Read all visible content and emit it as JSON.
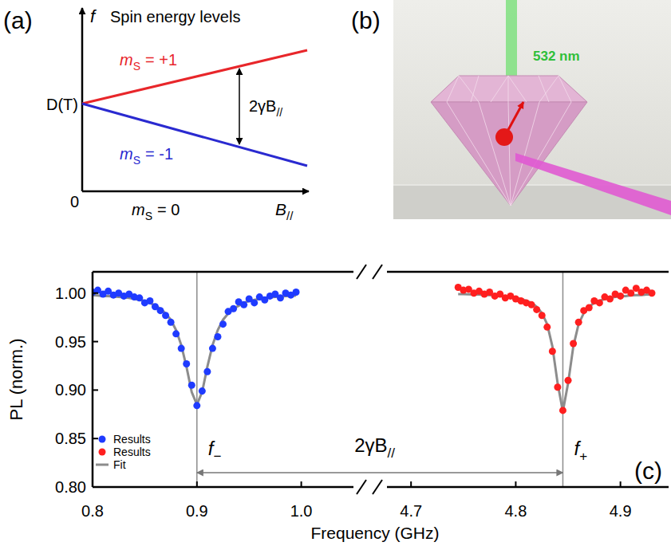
{
  "panel_a": {
    "label": "(a)",
    "title": "Spin energy levels",
    "y_axis": "f",
    "x_axis": {
      "text": "B",
      "sub": "//"
    },
    "origin": "0",
    "zero_field_label": "D(T)",
    "levels": [
      {
        "symbol": "m",
        "sub": "S",
        "text": "= +1",
        "color": "#e8262a"
      },
      {
        "symbol": "m",
        "sub": "S",
        "text": "= -1",
        "color": "#2a2ad0"
      },
      {
        "symbol": "m",
        "sub": "S",
        "text": "= 0",
        "color": "#000000"
      }
    ],
    "splitting": {
      "text": "2γB",
      "sub": "//"
    }
  },
  "panel_b": {
    "label": "(b)",
    "laser": "532 nm"
  },
  "chart_data": {
    "type": "scatter",
    "panel_label": "(c)",
    "xlabel": "Frequency (GHz)",
    "ylabel": "PL (norm.)",
    "ylim": [
      0.8,
      1.022
    ],
    "yticks": [
      {
        "value": 0.8,
        "label": "0.80"
      },
      {
        "value": 0.85,
        "label": "0.85"
      },
      {
        "value": 0.9,
        "label": "0.90"
      },
      {
        "value": 0.95,
        "label": "0.95"
      },
      {
        "value": 1,
        "label": "1.00"
      }
    ],
    "x_segments": [
      {
        "xlim": [
          0.8,
          1.05
        ],
        "xticks": [
          0.8,
          0.9,
          {
            "value": 1,
            "label": "1.0"
          }
        ]
      },
      {
        "xlim": [
          4.677,
          4.946
        ],
        "xticks": [
          4.7,
          4.8,
          4.9
        ]
      }
    ],
    "legend": "lower left",
    "series": [
      {
        "name": "Results",
        "color": "#1f3bff",
        "marker": "circle",
        "x": [
          0.8,
          0.805,
          0.81,
          0.815,
          0.82,
          0.825,
          0.83,
          0.835,
          0.84,
          0.845,
          0.85,
          0.855,
          0.86,
          0.865,
          0.87,
          0.875,
          0.88,
          0.885,
          0.89,
          0.895,
          0.9,
          0.905,
          0.91,
          0.915,
          0.92,
          0.925,
          0.93,
          0.935,
          0.94,
          0.945,
          0.95,
          0.955,
          0.96,
          0.965,
          0.97,
          0.975,
          0.98,
          0.985,
          0.99,
          0.995
        ],
        "values": [
          1.001,
          1.003,
          0.999,
          1.002,
          0.998,
          1.0,
          0.997,
          0.999,
          0.996,
          0.995,
          0.99,
          0.992,
          0.986,
          0.982,
          0.977,
          0.97,
          0.958,
          0.943,
          0.927,
          0.905,
          0.884,
          0.899,
          0.919,
          0.943,
          0.955,
          0.968,
          0.981,
          0.984,
          0.991,
          0.988,
          0.994,
          0.99,
          0.996,
          0.993,
          0.997,
          0.999,
          0.995,
          1.0,
          0.998,
          1.001
        ]
      },
      {
        "name": "Results",
        "color": "#ff1f1f",
        "marker": "circle",
        "x": [
          4.745,
          4.75,
          4.755,
          4.76,
          4.765,
          4.77,
          4.775,
          4.78,
          4.785,
          4.79,
          4.795,
          4.8,
          4.805,
          4.81,
          4.815,
          4.82,
          4.825,
          4.83,
          4.835,
          4.84,
          4.845,
          4.85,
          4.855,
          4.86,
          4.865,
          4.87,
          4.875,
          4.88,
          4.885,
          4.89,
          4.895,
          4.9,
          4.905,
          4.91,
          4.915,
          4.92,
          4.925,
          4.93
        ],
        "values": [
          1.006,
          1.003,
          1.004,
          1.0,
          1.002,
          0.999,
          1.001,
          0.997,
          0.999,
          0.995,
          0.997,
          0.994,
          0.992,
          0.99,
          0.988,
          0.983,
          0.977,
          0.965,
          0.94,
          0.903,
          0.879,
          0.91,
          0.948,
          0.97,
          0.982,
          0.985,
          0.992,
          0.99,
          0.996,
          0.994,
          0.999,
          0.997,
          1.003,
          1.0,
          1.005,
          1.001,
          1.003,
          1.0
        ]
      },
      {
        "name": "Fit",
        "color": "#8c8c8c",
        "type": "line",
        "line_style": "solid",
        "x": [
          0.8,
          0.805,
          0.81,
          0.815,
          0.82,
          0.825,
          0.83,
          0.835,
          0.84,
          0.845,
          0.85,
          0.855,
          0.86,
          0.865,
          0.87,
          0.875,
          0.88,
          0.885,
          0.89,
          0.895,
          0.9,
          0.905,
          0.91,
          0.915,
          0.92,
          0.925,
          0.93,
          0.935,
          0.94,
          0.945,
          0.95,
          0.955,
          0.96,
          0.965,
          0.97,
          0.975,
          0.98,
          0.985,
          0.99,
          0.995,
          4.745,
          4.75,
          4.755,
          4.76,
          4.765,
          4.77,
          4.775,
          4.78,
          4.785,
          4.79,
          4.795,
          4.8,
          4.805,
          4.81,
          4.815,
          4.82,
          4.825,
          4.83,
          4.835,
          4.84,
          4.845,
          4.85,
          4.855,
          4.86,
          4.865,
          4.87,
          4.875,
          4.88,
          4.885,
          4.89,
          4.895,
          4.9,
          4.905,
          4.91,
          4.915,
          4.92,
          4.925,
          4.93
        ],
        "values": [
          0.998,
          0.9976,
          0.997,
          0.997,
          0.9966,
          0.996,
          0.9956,
          0.995,
          0.994,
          0.993,
          0.992,
          0.99,
          0.987,
          0.984,
          0.979,
          0.9725,
          0.962,
          0.9465,
          0.924,
          0.898,
          0.885,
          0.898,
          0.924,
          0.9465,
          0.962,
          0.9725,
          0.979,
          0.984,
          0.987,
          0.99,
          0.992,
          0.993,
          0.994,
          0.995,
          0.9956,
          0.996,
          0.9966,
          0.997,
          0.997,
          0.9976,
          0.999,
          0.999,
          0.9988,
          0.9986,
          0.9985,
          0.998,
          0.998,
          0.9977,
          0.997,
          0.997,
          0.996,
          0.995,
          0.994,
          0.992,
          0.99,
          0.986,
          0.9795,
          0.968,
          0.945,
          0.907,
          0.878,
          0.907,
          0.945,
          0.968,
          0.9795,
          0.986,
          0.99,
          0.992,
          0.994,
          0.995,
          0.996,
          0.997,
          0.997,
          0.9977,
          0.998,
          0.998,
          0.9985,
          0.9986
        ]
      }
    ],
    "markers": [
      {
        "text": "f",
        "sub": "−",
        "x": 0.9
      },
      {
        "text": "f",
        "sub": "+",
        "x": 4.845
      }
    ],
    "span": {
      "text": "2γB",
      "sub": "//",
      "x": [
        0.9,
        4.845
      ]
    }
  }
}
